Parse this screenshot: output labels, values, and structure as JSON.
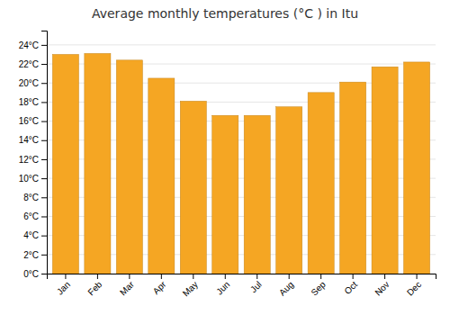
{
  "chart_data": {
    "type": "bar",
    "title": "Average monthly temperatures (°C ) in Itu",
    "categories": [
      "Jan",
      "Feb",
      "Mar",
      "Apr",
      "May",
      "Jun",
      "Jul",
      "Aug",
      "Sep",
      "Oct",
      "Nov",
      "Dec"
    ],
    "values": [
      23.0,
      23.1,
      22.4,
      20.5,
      18.1,
      16.6,
      16.6,
      17.5,
      19.0,
      20.1,
      21.7,
      22.2
    ],
    "color": "#F5A623",
    "ylim": [
      0,
      25.5
    ],
    "yticks": [
      {
        "value": 0,
        "label": "0°C"
      },
      {
        "value": 2,
        "label": "2°C"
      },
      {
        "value": 4,
        "label": "4°C"
      },
      {
        "value": 6,
        "label": "6°C"
      },
      {
        "value": 8,
        "label": "8°C"
      },
      {
        "value": 10,
        "label": "10°C"
      },
      {
        "value": 12,
        "label": "12°C"
      },
      {
        "value": 14,
        "label": "14°C"
      },
      {
        "value": 16,
        "label": "16°C"
      },
      {
        "value": 18,
        "label": "18°C"
      },
      {
        "value": 20,
        "label": "20°C"
      },
      {
        "value": 22,
        "label": "22°C"
      },
      {
        "value": 24,
        "label": "24°C"
      }
    ],
    "grid": true
  }
}
